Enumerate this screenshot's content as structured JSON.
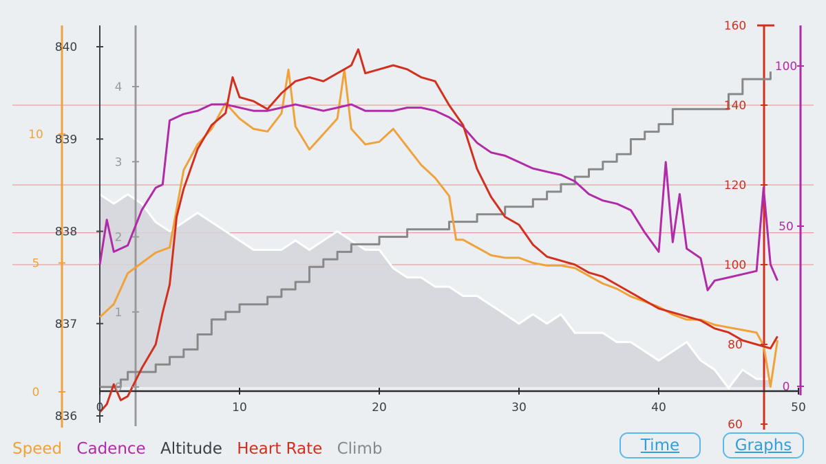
{
  "colors": {
    "speed": "#f0a23a",
    "cadence": "#b12aa8",
    "altitude": "#3c3f45",
    "heart_rate": "#d2301f",
    "climb": "#888888",
    "elevation_fill": "#d3d5da",
    "elevation_line": "#ffffff",
    "hr_grid": "#e0908a",
    "button": "#2f9fdc"
  },
  "legend": {
    "speed": "Speed",
    "cadence": "Cadence",
    "altitude": "Altitude",
    "heart_rate": "Heart Rate",
    "climb": "Climb"
  },
  "buttons": {
    "time": "Time",
    "graphs": "Graphs"
  },
  "chart_data": {
    "type": "line",
    "x_ticks": [
      "0",
      "10",
      "20",
      "30",
      "40",
      "50"
    ],
    "xlim": [
      0,
      50
    ],
    "axes": {
      "altitude": {
        "ticks": [
          "836",
          "837",
          "838",
          "839",
          "840"
        ],
        "ylim": [
          836,
          840
        ]
      },
      "climb": {
        "ticks": [
          "0",
          "1",
          "2",
          "3",
          "4"
        ],
        "ylim": [
          0,
          4
        ]
      },
      "speed": {
        "ticks": [
          "0",
          "5",
          "10"
        ],
        "ylim": [
          0,
          10
        ]
      },
      "heart_rate": {
        "ticks": [
          "60",
          "80",
          "100",
          "120",
          "140",
          "160"
        ],
        "ylim": [
          60,
          160
        ]
      },
      "cadence": {
        "ticks": [
          "0",
          "50",
          "100"
        ],
        "ylim": [
          0,
          100
        ]
      }
    },
    "series": [
      {
        "name": "Speed",
        "axis": "speed",
        "x": [
          0,
          1,
          2,
          3,
          4,
          5,
          6,
          7,
          8,
          9,
          10,
          11,
          12,
          13,
          13.5,
          14,
          15,
          16,
          17,
          17.5,
          18,
          19,
          20,
          21,
          22,
          23,
          24,
          25,
          25.5,
          26,
          27,
          28,
          29,
          30,
          31,
          32,
          33,
          34,
          35,
          36,
          37,
          38,
          39,
          40,
          41,
          42,
          43,
          44,
          45,
          46,
          47,
          47.5,
          48,
          48.5
        ],
        "y": [
          2.9,
          3.4,
          4.6,
          5.0,
          5.4,
          5.6,
          8.6,
          9.6,
          10.2,
          11.2,
          10.6,
          10.2,
          10.1,
          10.8,
          12.5,
          10.3,
          9.4,
          10.0,
          10.6,
          12.5,
          10.2,
          9.6,
          9.7,
          10.2,
          9.5,
          8.8,
          8.3,
          7.6,
          5.9,
          5.9,
          5.6,
          5.3,
          5.2,
          5.2,
          5.0,
          4.9,
          4.9,
          4.8,
          4.5,
          4.2,
          4.0,
          3.7,
          3.5,
          3.3,
          3.0,
          2.8,
          2.8,
          2.6,
          2.5,
          2.4,
          2.3,
          1.8,
          0.2,
          2.0
        ]
      },
      {
        "name": "Cadence",
        "axis": "cadence",
        "x": [
          0,
          0.5,
          1,
          2,
          3,
          4,
          4.5,
          5,
          6,
          7,
          8,
          9,
          10,
          11,
          12,
          13,
          14,
          15,
          16,
          17,
          18,
          19,
          20,
          21,
          22,
          23,
          24,
          25,
          26,
          27,
          28,
          29,
          30,
          31,
          32,
          33,
          34,
          35,
          36,
          37,
          38,
          39,
          40,
          40.5,
          41,
          41.5,
          42,
          43,
          43.5,
          44,
          45,
          46,
          47,
          47.5,
          48,
          48.5
        ],
        "y": [
          38,
          52,
          42,
          44,
          55,
          62,
          63,
          83,
          85,
          86,
          88,
          88,
          87,
          86,
          86,
          87,
          88,
          87,
          86,
          87,
          88,
          86,
          86,
          86,
          87,
          87,
          86,
          84,
          81,
          76,
          73,
          72,
          70,
          68,
          67,
          66,
          64,
          60,
          58,
          57,
          55,
          48,
          42,
          70,
          45,
          60,
          43,
          40,
          30,
          33,
          34,
          35,
          36,
          62,
          38,
          33
        ]
      },
      {
        "name": "Altitude",
        "axis": "altitude",
        "x": [
          0,
          1,
          2,
          3,
          4,
          5,
          6,
          7,
          8,
          9,
          10,
          11,
          12,
          13,
          14,
          15,
          16,
          17,
          18,
          19,
          20,
          21,
          22,
          23,
          24,
          25,
          26,
          27,
          28,
          29,
          30,
          31,
          32,
          33,
          34,
          35,
          36,
          37,
          38,
          39,
          40,
          41,
          42,
          43,
          44,
          45,
          46,
          47,
          48
        ],
        "y": [
          838.4,
          838.3,
          838.4,
          838.3,
          838.1,
          838.0,
          838.1,
          838.2,
          838.1,
          838.0,
          837.9,
          837.8,
          837.8,
          837.8,
          837.9,
          837.8,
          837.9,
          838.0,
          837.9,
          837.8,
          837.8,
          837.6,
          837.5,
          837.5,
          837.4,
          837.4,
          837.3,
          837.3,
          837.2,
          837.1,
          837.0,
          837.1,
          837.0,
          837.1,
          836.9,
          836.9,
          836.9,
          836.8,
          836.8,
          836.7,
          836.6,
          836.7,
          836.8,
          836.6,
          836.5,
          836.3,
          836.5,
          836.4,
          836.4
        ]
      },
      {
        "name": "Heart Rate",
        "axis": "heart_rate",
        "x": [
          0,
          0.5,
          1,
          1.5,
          2,
          3,
          4,
          4.5,
          5,
          5.5,
          6,
          7,
          8,
          9,
          9.5,
          10,
          11,
          12,
          13,
          14,
          15,
          16,
          17,
          18,
          18.5,
          19,
          20,
          21,
          22,
          23,
          24,
          25,
          26,
          27,
          28,
          29,
          30,
          31,
          32,
          33,
          34,
          35,
          36,
          37,
          38,
          39,
          40,
          41,
          42,
          43,
          44,
          45,
          46,
          47,
          48,
          48.5
        ],
        "y": [
          63,
          65,
          70,
          66,
          67,
          74,
          80,
          88,
          95,
          112,
          119,
          129,
          135,
          138,
          147,
          142,
          141,
          139,
          143,
          146,
          147,
          146,
          148,
          150,
          154,
          148,
          149,
          150,
          149,
          147,
          146,
          140,
          135,
          124,
          117,
          112,
          110,
          105,
          102,
          101,
          100,
          98,
          97,
          95,
          93,
          91,
          89,
          88,
          87,
          86,
          84,
          83,
          81,
          80,
          79,
          82
        ]
      },
      {
        "name": "Climb",
        "axis": "climb",
        "x": [
          0,
          0.5,
          1,
          1.5,
          2,
          3,
          4,
          5,
          6,
          7,
          8,
          9,
          10,
          11,
          12,
          13,
          14,
          15,
          16,
          17,
          18,
          19,
          20,
          21,
          22,
          23,
          24,
          25,
          26,
          27,
          28,
          29,
          30,
          31,
          32,
          33,
          34,
          35,
          36,
          37,
          38,
          39,
          40,
          41,
          42,
          43,
          44,
          45,
          46,
          47,
          48
        ],
        "y": [
          0,
          0,
          0,
          0.1,
          0.2,
          0.2,
          0.3,
          0.4,
          0.5,
          0.7,
          0.9,
          1.0,
          1.1,
          1.1,
          1.2,
          1.3,
          1.4,
          1.6,
          1.7,
          1.8,
          1.9,
          1.9,
          2.0,
          2.0,
          2.1,
          2.1,
          2.1,
          2.2,
          2.2,
          2.3,
          2.3,
          2.4,
          2.4,
          2.5,
          2.6,
          2.7,
          2.8,
          2.9,
          3.0,
          3.1,
          3.3,
          3.4,
          3.5,
          3.7,
          3.7,
          3.7,
          3.7,
          3.9,
          4.1,
          4.1,
          4.2
        ]
      }
    ]
  }
}
